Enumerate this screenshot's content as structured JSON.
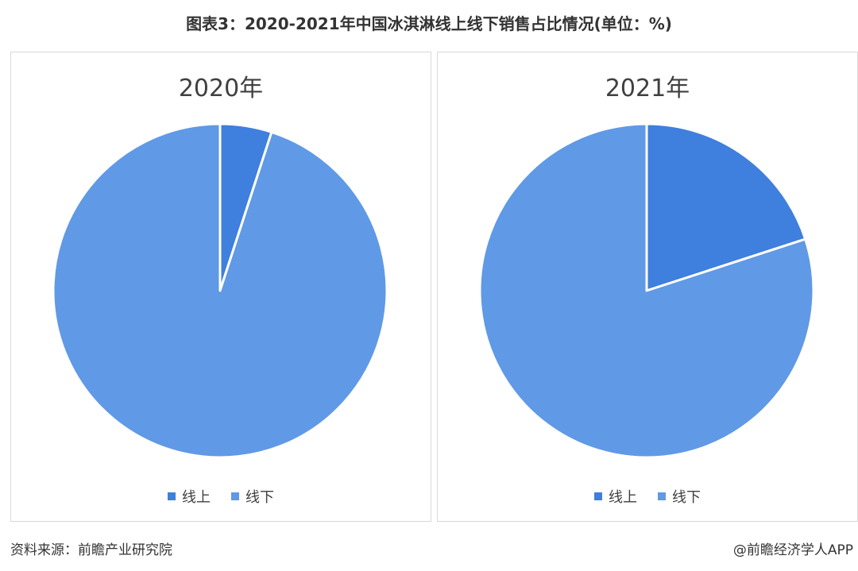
{
  "header": {
    "title": "图表3：2020-2021年中国冰淇淋线上线下销售占比情况(单位：%)"
  },
  "footer": {
    "source": "资料来源：前瞻产业研究院",
    "brand": "@前瞻经济学人APP"
  },
  "colors": {
    "online": "#3f7fdd",
    "offline": "#6099e6"
  },
  "chart_data": [
    {
      "type": "pie",
      "title": "2020年",
      "categories": [
        "线上",
        "线下"
      ],
      "values": [
        5,
        95
      ],
      "legend": "bottom"
    },
    {
      "type": "pie",
      "title": "2021年",
      "categories": [
        "线上",
        "线下"
      ],
      "values": [
        20,
        80
      ],
      "legend": "bottom"
    }
  ]
}
